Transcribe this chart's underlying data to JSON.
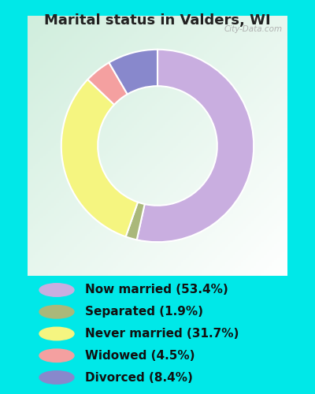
{
  "title": "Marital status in Valders, WI",
  "categories": [
    "Now married",
    "Separated",
    "Never married",
    "Widowed",
    "Divorced"
  ],
  "values": [
    53.4,
    1.9,
    31.7,
    4.5,
    8.4
  ],
  "colors": [
    "#c9aee0",
    "#aab87a",
    "#f5f580",
    "#f4a0a0",
    "#8888cc"
  ],
  "legend_labels": [
    "Now married (53.4%)",
    "Separated (1.9%)",
    "Never married (31.7%)",
    "Widowed (4.5%)",
    "Divorced (8.4%)"
  ],
  "bg_outer": "#00e8e8",
  "title_color": "#222222",
  "watermark": "City-Data.com",
  "title_fontsize": 13,
  "legend_fontsize": 11,
  "donut_width": 0.38,
  "start_angle": 90
}
